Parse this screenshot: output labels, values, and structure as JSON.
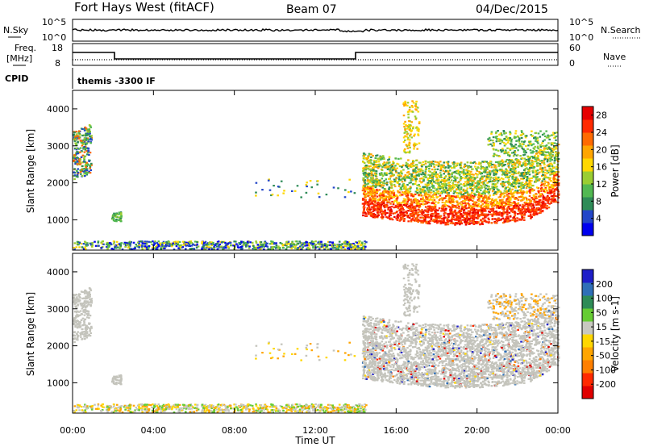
{
  "header": {
    "station": "Fort Hays West (fitACF)",
    "beam": "Beam 07",
    "date": "04/Dec/2015"
  },
  "top_panels": {
    "nsky_label": "N.Sky",
    "nsky_ticks": [
      "10^5",
      "10^0"
    ],
    "nsearch_label": "N.Search",
    "nsearch_ticks": [
      "10^5",
      "10^0"
    ],
    "freq_label": "Freq.",
    "freq_unit": "[MHz]",
    "freq_ticks": [
      "18",
      "8"
    ],
    "nave_label": "Nave",
    "nave_ticks": [
      "60",
      "0"
    ],
    "cpid_label": "CPID",
    "cpid_value": "themis -3300 IF"
  },
  "colors": {
    "power": [
      "#0000ee",
      "#2346c8",
      "#2e8b57",
      "#52b852",
      "#9acd32",
      "#ffd700",
      "#ffa500",
      "#ff6a00",
      "#ff2a00",
      "#e60000"
    ],
    "velocity": [
      "#1e1ec8",
      "#2f6fb7",
      "#2e8b57",
      "#66cc33",
      "#c8c8c0",
      "#ffd700",
      "#ffa500",
      "#ff7f00",
      "#ff2a00",
      "#e00000"
    ],
    "ground": "#c4c4bc"
  },
  "chart_data": [
    {
      "type": "heatmap",
      "title": "Power",
      "xlabel": "Time UT",
      "ylabel": "Slant Range [km]",
      "x_ticks": [
        "00:00",
        "04:00",
        "08:00",
        "12:00",
        "16:00",
        "20:00",
        "00:00"
      ],
      "xlim_hours": [
        0,
        24
      ],
      "y_ticks": [
        "1000",
        "2000",
        "3000",
        "4000"
      ],
      "ylim_km": [
        180,
        4500
      ],
      "colorbar": {
        "label": "Power [dB]",
        "ticks": [
          "4",
          "8",
          "12",
          "16",
          "20",
          "24",
          "28"
        ],
        "range": [
          0,
          30
        ]
      },
      "regions": [
        {
          "name": "near-range scatter",
          "t": [
            0.0,
            14.5
          ],
          "range_km": [
            180,
            420
          ],
          "level": "low"
        },
        {
          "name": "early echoes",
          "t": [
            0.0,
            1.0
          ],
          "range_km": [
            2000,
            3450
          ],
          "level": "mixed"
        },
        {
          "name": "main scatter band",
          "t": [
            14.3,
            24.0
          ],
          "range_km": [
            800,
            2800
          ],
          "level": "high",
          "peak_range_km": 1300
        }
      ]
    },
    {
      "type": "heatmap",
      "title": "Velocity",
      "xlabel": "Time UT",
      "ylabel": "Slant Range [km]",
      "x_ticks": [
        "00:00",
        "04:00",
        "08:00",
        "12:00",
        "16:00",
        "20:00",
        "00:00"
      ],
      "xlim_hours": [
        0,
        24
      ],
      "y_ticks": [
        "1000",
        "2000",
        "3000",
        "4000"
      ],
      "ylim_km": [
        180,
        4500
      ],
      "colorbar": {
        "label": "Velocity [m s-1]",
        "ticks": [
          "200",
          "100",
          "50",
          "15",
          "-15",
          "-50",
          "-100",
          "-200"
        ],
        "range": [
          -250,
          250
        ]
      },
      "regions": [
        {
          "name": "near-range scatter",
          "t": [
            0.0,
            14.5
          ],
          "range_km": [
            180,
            420
          ],
          "level": "low velocity"
        },
        {
          "name": "ground scatter band",
          "t": [
            14.3,
            24.0
          ],
          "range_km": [
            800,
            2800
          ],
          "level": "ground scatter"
        }
      ]
    }
  ]
}
